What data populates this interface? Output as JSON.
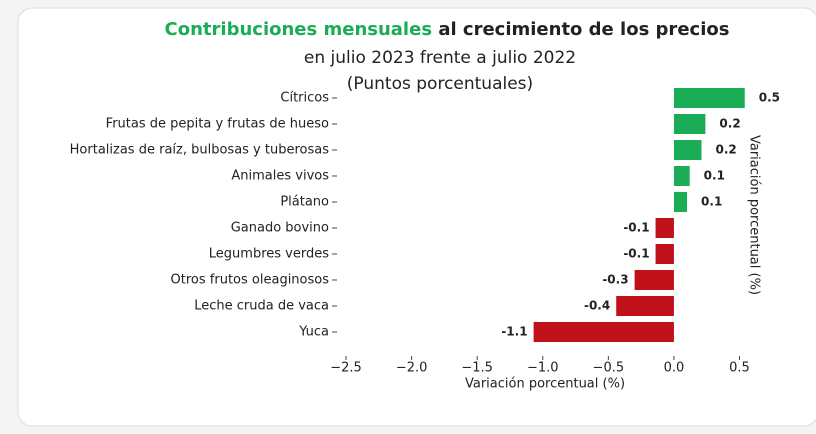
{
  "chart_data": {
    "type": "barh",
    "title": [
      "Contribuciones mensuales",
      "al crecimiento de los precios"
    ],
    "subtitle": [
      "en julio 2023 frente a julio 2022",
      "(Puntos porcentuales)"
    ],
    "xlabel": "Variación porcentual (%)",
    "ylabel": "Variación porcentual (%)",
    "categories": [
      "Cítricos",
      "Frutas de pepita y frutas de hueso",
      "Hortalizas de raíz, bulbosas y tuberosas",
      "Animales vivos",
      "Plátano",
      "Ganado bovino",
      "Legumbres verdes",
      "Otros frutos oleaginosos",
      "Leche cruda de vaca",
      "Yuca"
    ],
    "values": [
      0.54,
      0.24,
      0.21,
      0.12,
      0.1,
      -0.14,
      -0.14,
      -0.3,
      -0.44,
      -1.07
    ],
    "value_labels": [
      "0.5",
      "0.2",
      "0.2",
      "0.1",
      "0.1",
      "-0.1",
      "-0.1",
      "-0.3",
      "-0.4",
      "-1.1"
    ],
    "positive_color": "#1aad55",
    "negative_color": "#c0111b",
    "title_color": "#1aad55",
    "xlim": [
      -2.62,
      0.58
    ],
    "xticks": [
      {
        "value": -2.5,
        "label": "−2.5"
      },
      {
        "value": -2.0,
        "label": "−2.0"
      },
      {
        "value": -1.5,
        "label": "−1.5"
      },
      {
        "value": -1.0,
        "label": "−1.0"
      },
      {
        "value": -0.5,
        "label": "−0.5"
      },
      {
        "value": 0.0,
        "label": "0.0"
      },
      0.5
    ]
  }
}
